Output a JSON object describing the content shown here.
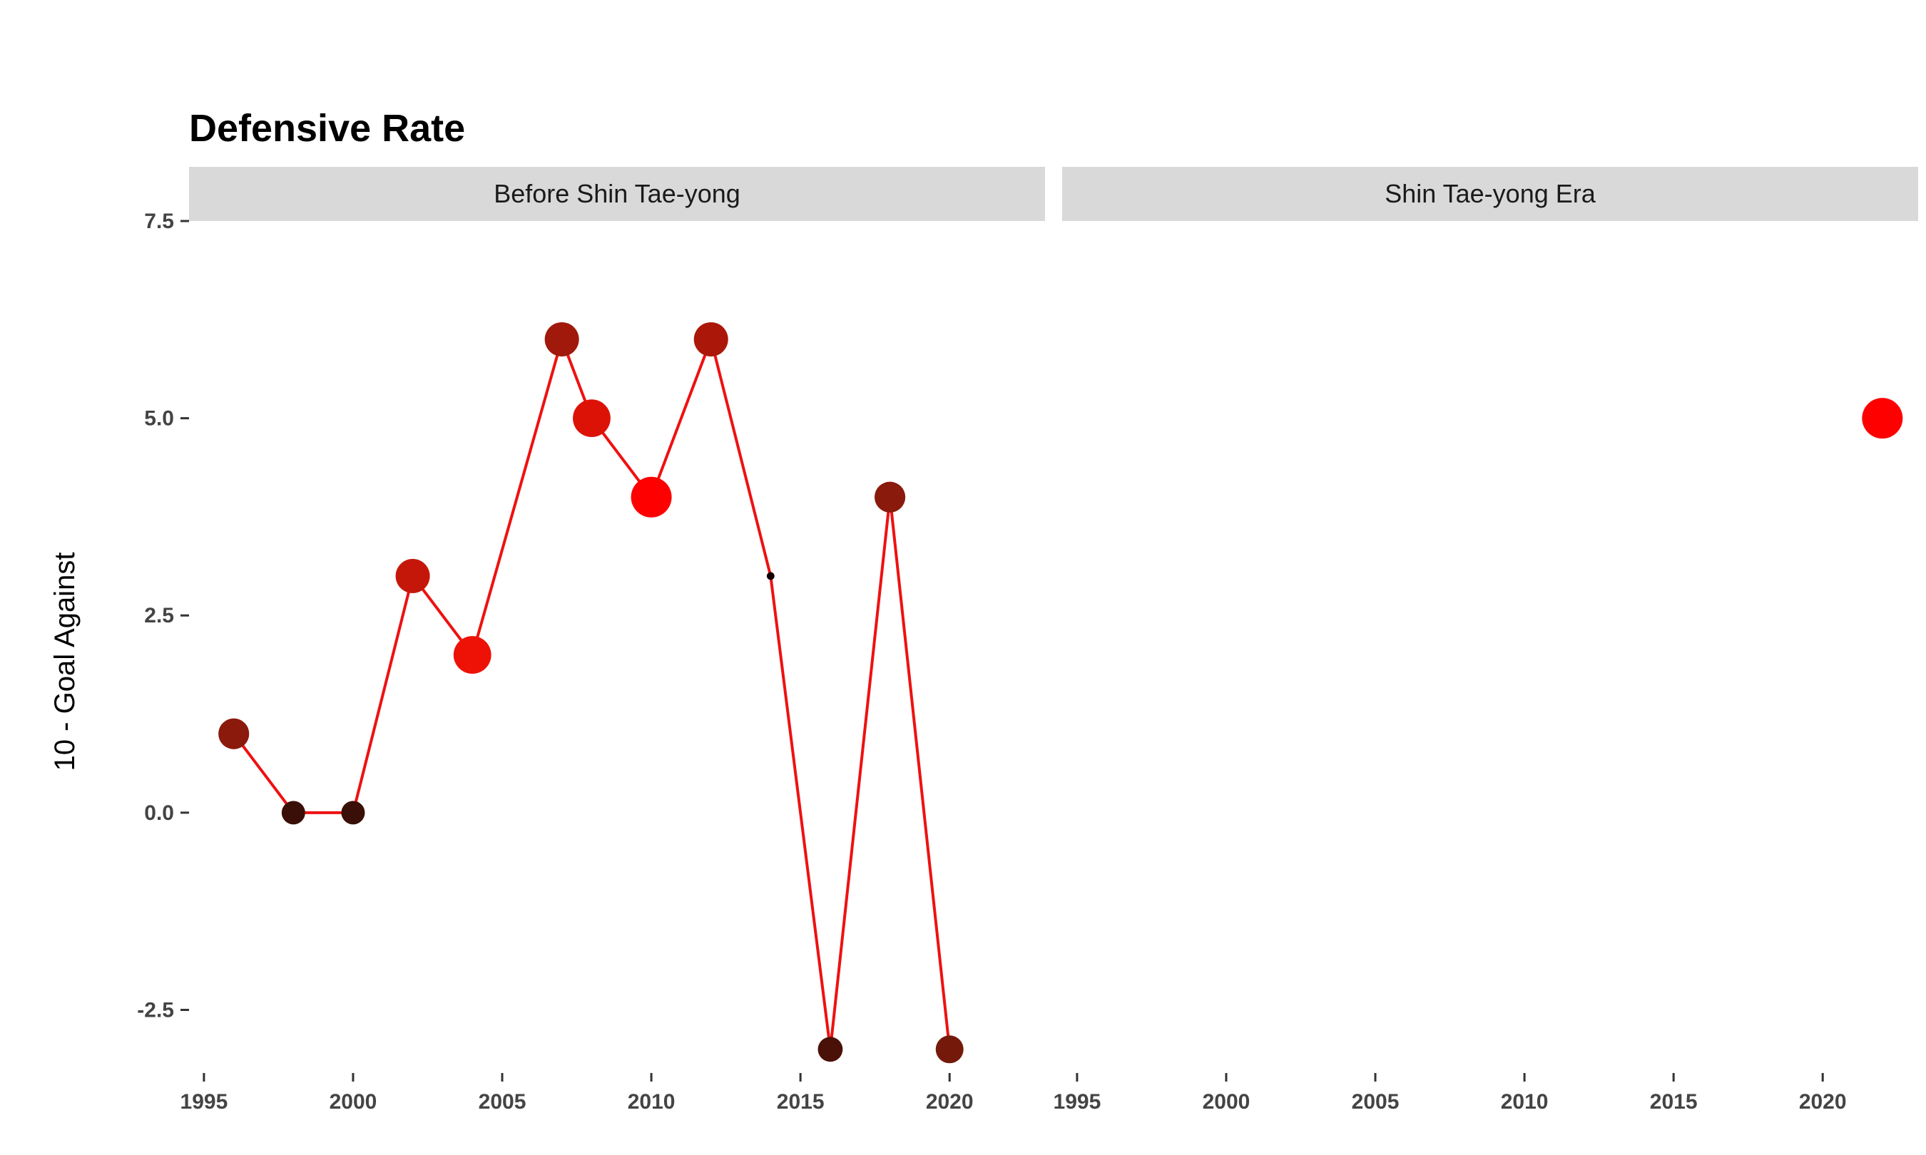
{
  "chart_data": {
    "type": "scatter",
    "title": "Defensive Rate",
    "ylabel": "10 - Goal Against",
    "xlabel": "",
    "xlim": [
      1994.5,
      2023.2
    ],
    "ylim": [
      -3.3,
      7.5
    ],
    "x_ticks": [
      1995,
      2000,
      2005,
      2010,
      2015,
      2020
    ],
    "x_tick_labels": [
      "1995",
      "2000",
      "2005",
      "2010",
      "2015",
      "2020"
    ],
    "y_ticks": [
      -2.5,
      0.0,
      2.5,
      5.0,
      7.5
    ],
    "y_tick_labels": [
      "-2.5",
      "0.0",
      "2.5",
      "5.0",
      "7.5"
    ],
    "grid": false,
    "line_color": "#ee1111",
    "panels": [
      {
        "label": "Before Shin Tae-yong",
        "points": [
          {
            "x": 1996,
            "y": 1,
            "size": 0.72,
            "color": "#8b1a0c"
          },
          {
            "x": 1998,
            "y": 0,
            "size": 0.55,
            "color": "#3a0f08"
          },
          {
            "x": 2000,
            "y": 0,
            "size": 0.55,
            "color": "#3a0f08"
          },
          {
            "x": 2002,
            "y": 3,
            "size": 0.8,
            "color": "#c4170a"
          },
          {
            "x": 2004,
            "y": 2,
            "size": 0.88,
            "color": "#ee1105"
          },
          {
            "x": 2007,
            "y": 6,
            "size": 0.8,
            "color": "#a0190b"
          },
          {
            "x": 2008,
            "y": 5,
            "size": 0.88,
            "color": "#dd1207"
          },
          {
            "x": 2010,
            "y": 4,
            "size": 0.95,
            "color": "#ff0000"
          },
          {
            "x": 2012,
            "y": 6,
            "size": 0.8,
            "color": "#ab180a"
          },
          {
            "x": 2014,
            "y": 3,
            "size": 0.18,
            "color": "#110000"
          },
          {
            "x": 2016,
            "y": -3,
            "size": 0.58,
            "color": "#4a1108"
          },
          {
            "x": 2018,
            "y": 4,
            "size": 0.72,
            "color": "#8a1a0c"
          },
          {
            "x": 2020,
            "y": -3,
            "size": 0.65,
            "color": "#751a0b"
          }
        ]
      },
      {
        "label": "Shin Tae-yong Era",
        "points": [
          {
            "x": 2022,
            "y": 5,
            "size": 0.95,
            "color": "#ff0000"
          }
        ]
      }
    ]
  }
}
